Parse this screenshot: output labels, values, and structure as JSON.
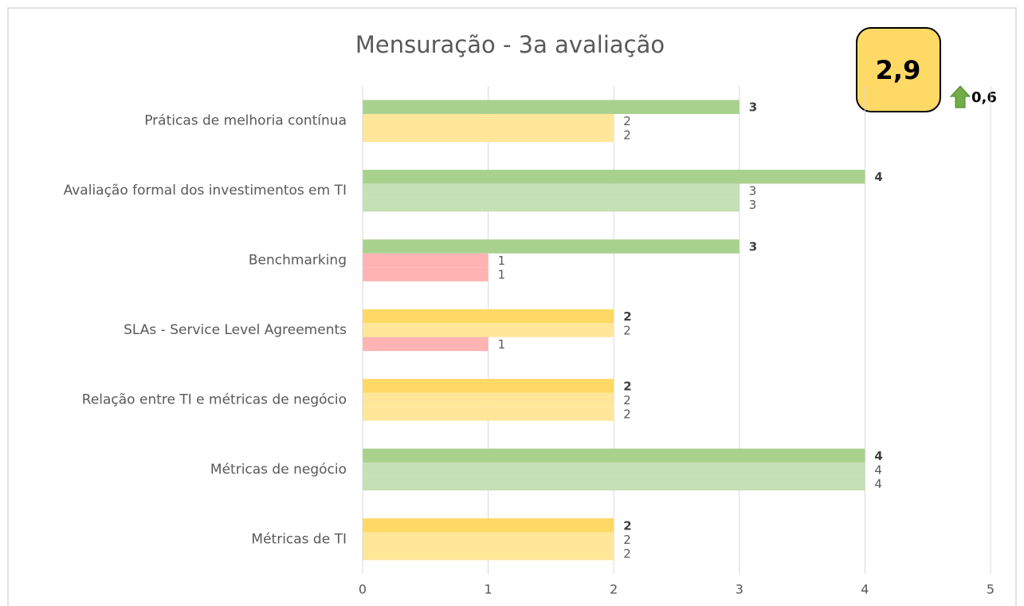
{
  "chart_data": {
    "type": "bar",
    "orientation": "horizontal",
    "title": "Mensuração - 3a avaliação",
    "categories": [
      "Práticas de melhoria contínua",
      "Avaliação formal dos investimentos em TI",
      "Benchmarking",
      "SLAs - Service Level Agreements",
      "Relação entre TI e métricas de negócio",
      "Métricas de negócio",
      "Métricas de TI"
    ],
    "series": [
      {
        "values": [
          3,
          4,
          3,
          2,
          2,
          4,
          2
        ],
        "colors": [
          "#a9d18e",
          "#a9d18e",
          "#a9d18e",
          "#ffd966",
          "#ffd966",
          "#a9d18e",
          "#ffd966"
        ],
        "bold": true
      },
      {
        "values": [
          2,
          3,
          1,
          2,
          2,
          4,
          2
        ],
        "colors": [
          "#ffe699",
          "#c5e0b4",
          "#ffb3b3",
          "#ffe699",
          "#ffe699",
          "#c5e0b4",
          "#ffe699"
        ]
      },
      {
        "values": [
          2,
          3,
          1,
          1,
          2,
          4,
          2
        ],
        "colors": [
          "#ffe699",
          "#c5e0b4",
          "#ffb3b3",
          "#ffb3b3",
          "#ffe699",
          "#c5e0b4",
          "#ffe699"
        ]
      }
    ],
    "xlim": [
      0,
      5
    ],
    "xticks": [
      0,
      1,
      2,
      3,
      4,
      5
    ],
    "grid": true,
    "annotations": {
      "score": "2,9",
      "change": "0,6"
    }
  }
}
